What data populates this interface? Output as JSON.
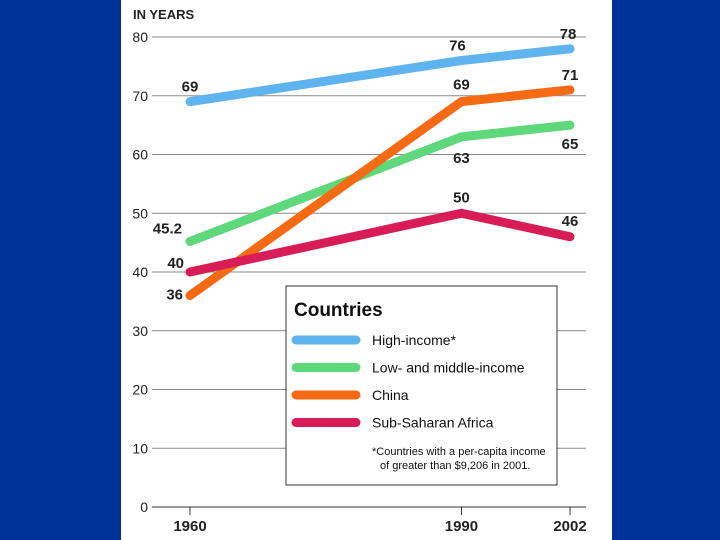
{
  "chart_data": {
    "type": "line",
    "unit_label": "IN YEARS",
    "x": [
      1960,
      1990,
      2002
    ],
    "x_tick_labels": [
      "1960",
      "1990",
      "2002"
    ],
    "ylim": [
      0,
      80
    ],
    "y_ticks": [
      0,
      10,
      20,
      30,
      40,
      50,
      60,
      70,
      80
    ],
    "y_tick_labels": [
      "0",
      "10",
      "20",
      "30",
      "40",
      "50",
      "60",
      "70",
      "80"
    ],
    "grid": true,
    "legend_position": "bottom-right",
    "legend_title": "Countries",
    "series": [
      {
        "name": "High-income*",
        "values": [
          69,
          76,
          78
        ],
        "labels": [
          "69",
          "76",
          "78"
        ],
        "color": "#5fb4f0"
      },
      {
        "name": "Low- and middle-income",
        "values": [
          45.2,
          63,
          65
        ],
        "labels": [
          "45.2",
          "63",
          "65"
        ],
        "color": "#5ed87a"
      },
      {
        "name": "China",
        "values": [
          36,
          69,
          71
        ],
        "labels": [
          "36",
          "69",
          "71"
        ],
        "color": "#f56a12"
      },
      {
        "name": "Sub-Saharan Africa",
        "values": [
          40,
          50,
          46
        ],
        "labels": [
          "40",
          "50",
          "46"
        ],
        "color": "#d81c58"
      }
    ],
    "footnote_line1": "*Countries with a per-capita income",
    "footnote_line2": "of greater than $9,206 in 2001."
  }
}
